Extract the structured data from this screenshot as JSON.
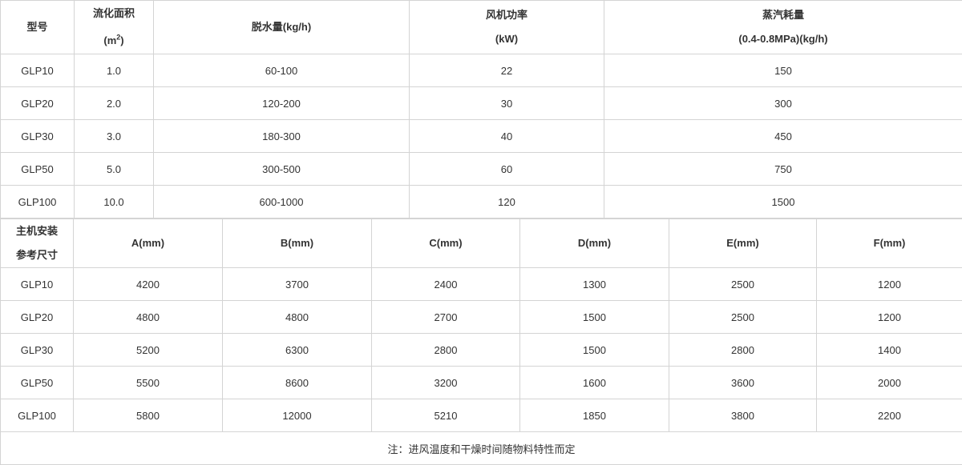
{
  "table1": {
    "headers": {
      "model": "型号",
      "area_label": "流化面积",
      "area_unit_base": "(m",
      "area_unit_sup": "2",
      "area_unit_end": ")",
      "dewater": "脱水量(kg/h)",
      "fan_label": "风机功率",
      "fan_unit": "(kW)",
      "steam_label": "蒸汽耗量",
      "steam_unit": "(0.4-0.8MPa)(kg/h)"
    },
    "rows": [
      [
        "GLP10",
        "1.0",
        "60-100",
        "22",
        "150"
      ],
      [
        "GLP20",
        "2.0",
        "120-200",
        "30",
        "300"
      ],
      [
        "GLP30",
        "3.0",
        "180-300",
        "40",
        "450"
      ],
      [
        "GLP50",
        "5.0",
        "300-500",
        "60",
        "750"
      ],
      [
        "GLP100",
        "10.0",
        "600-1000",
        "120",
        "1500"
      ]
    ]
  },
  "table2": {
    "headers": {
      "label_line1": "主机安装",
      "label_line2": "参考尺寸",
      "cols": [
        "A(mm)",
        "B(mm)",
        "C(mm)",
        "D(mm)",
        "E(mm)",
        "F(mm)"
      ]
    },
    "rows": [
      [
        "GLP10",
        "4200",
        "3700",
        "2400",
        "1300",
        "2500",
        "1200"
      ],
      [
        "GLP20",
        "4800",
        "4800",
        "2700",
        "1500",
        "2500",
        "1200"
      ],
      [
        "GLP30",
        "5200",
        "6300",
        "2800",
        "1500",
        "2800",
        "1400"
      ],
      [
        "GLP50",
        "5500",
        "8600",
        "3200",
        "1600",
        "3600",
        "2000"
      ],
      [
        "GLP100",
        "5800",
        "12000",
        "5210",
        "1850",
        "3800",
        "2200"
      ]
    ],
    "note": "注：进风温度和干燥时间随物料特性而定"
  }
}
